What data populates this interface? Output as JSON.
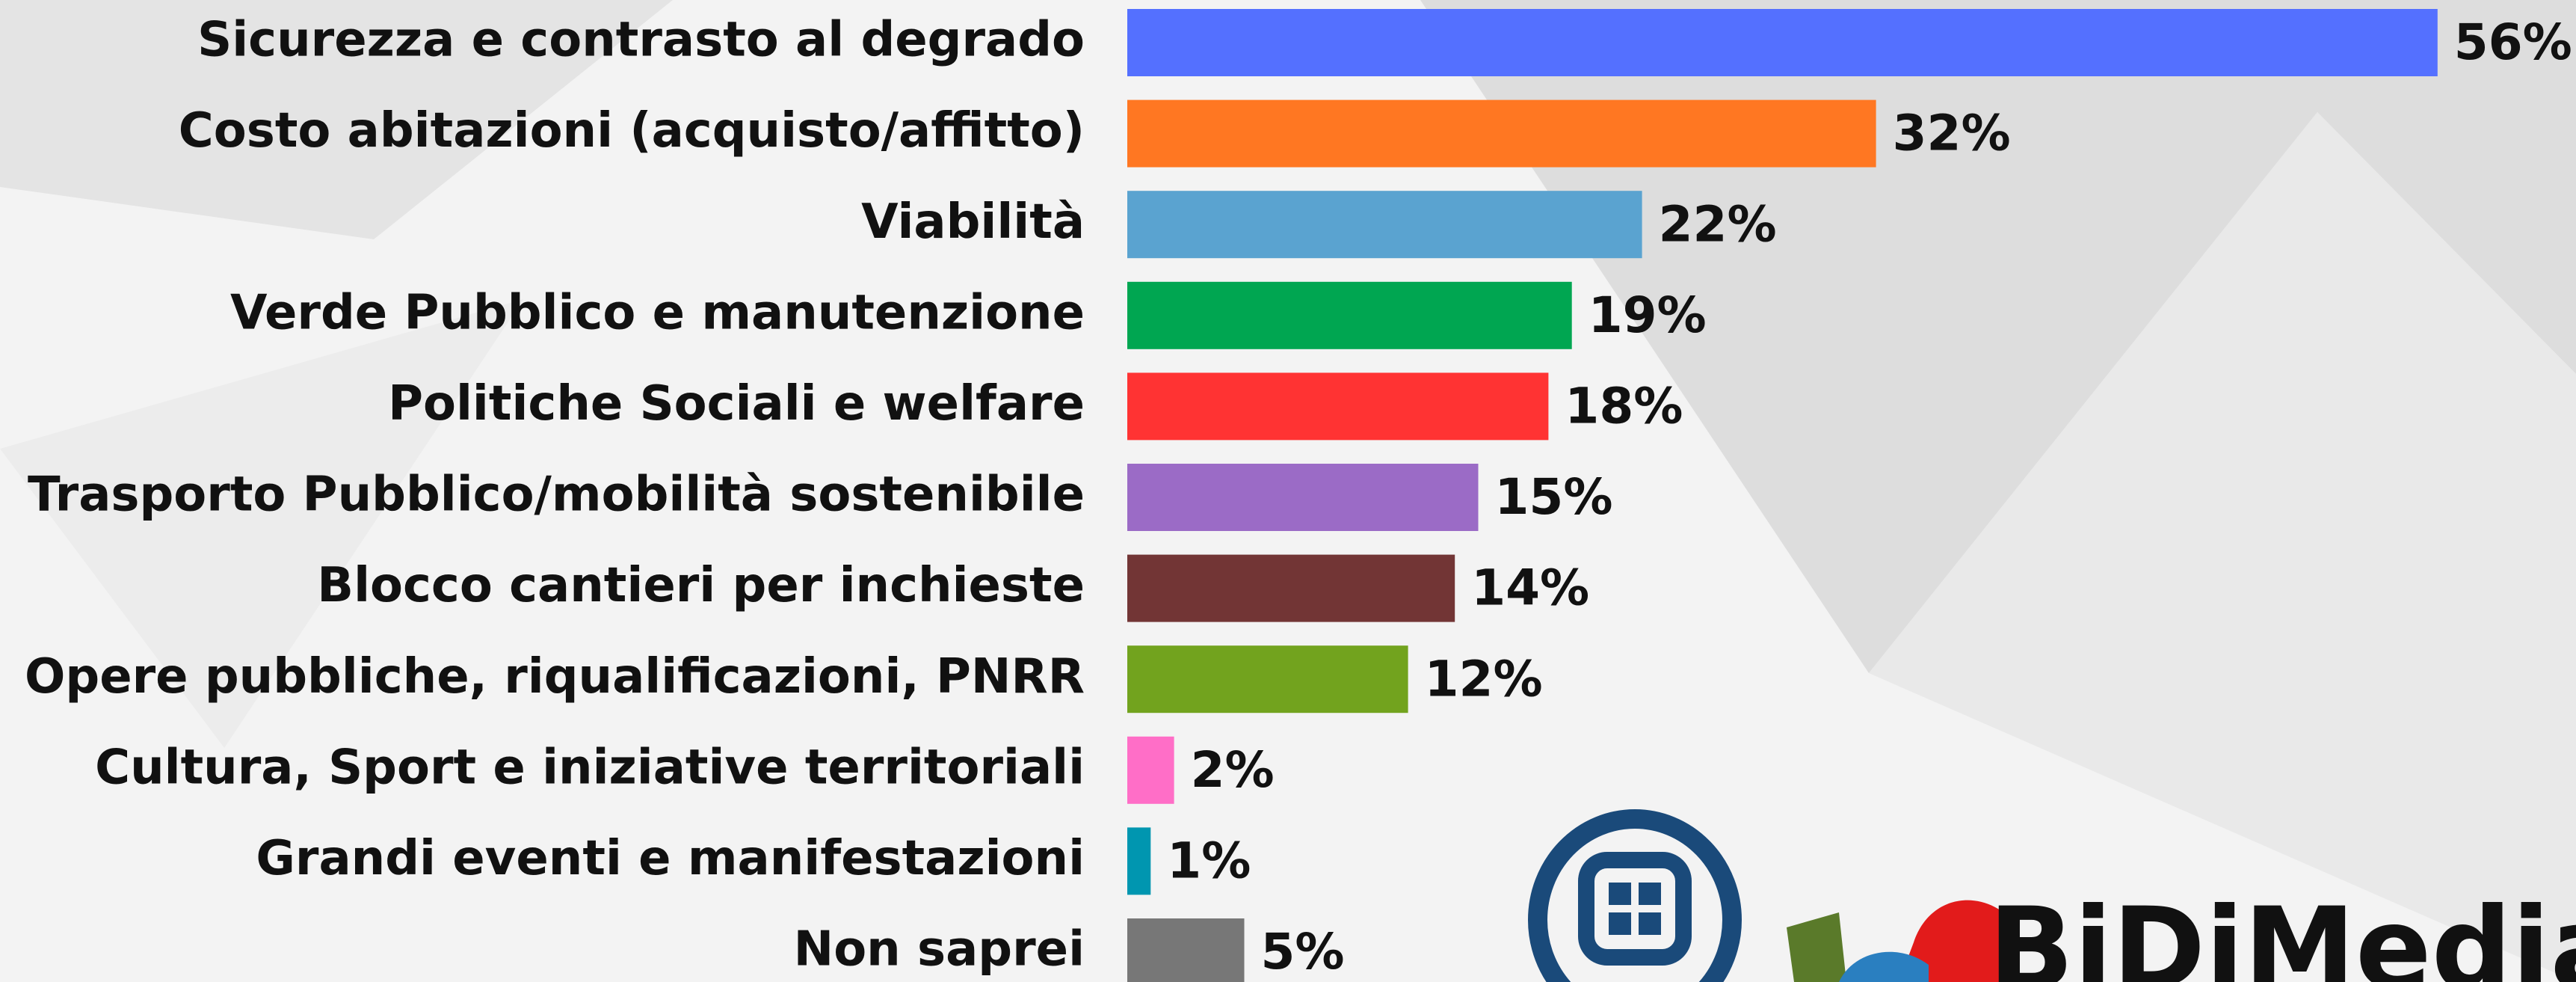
{
  "chart_data": {
    "type": "bar",
    "orientation": "horizontal",
    "categories": [
      "Sicurezza e contrasto al degrado",
      "Costo abitazioni (acquisto/affitto)",
      "Viabilità",
      "Verde Pubblico e manutenzione",
      "Politiche Sociali e welfare",
      "Trasporto Pubblico/mobilità sostenibile",
      "Blocco cantieri per inchieste",
      "Opere pubbliche, riqualificazioni, PNRR",
      "Cultura, Sport e iniziative territoriali",
      "Grandi eventi e manifestazioni",
      "Non saprei"
    ],
    "values": [
      56,
      32,
      22,
      19,
      18,
      15,
      14,
      12,
      2,
      1,
      5
    ],
    "value_labels": [
      "56%",
      "32%",
      "22%",
      "19%",
      "18%",
      "15%",
      "14%",
      "12%",
      "2%",
      "1%",
      "5%"
    ],
    "colors": [
      "#5470ff",
      "#ff7722",
      "#5aa3d0",
      "#00a651",
      "#ff3333",
      "#9b6bc6",
      "#723535",
      "#72a31e",
      "#ff6ec7",
      "#0096b0",
      "#777777"
    ],
    "logo_text": "BiDiMedia"
  }
}
